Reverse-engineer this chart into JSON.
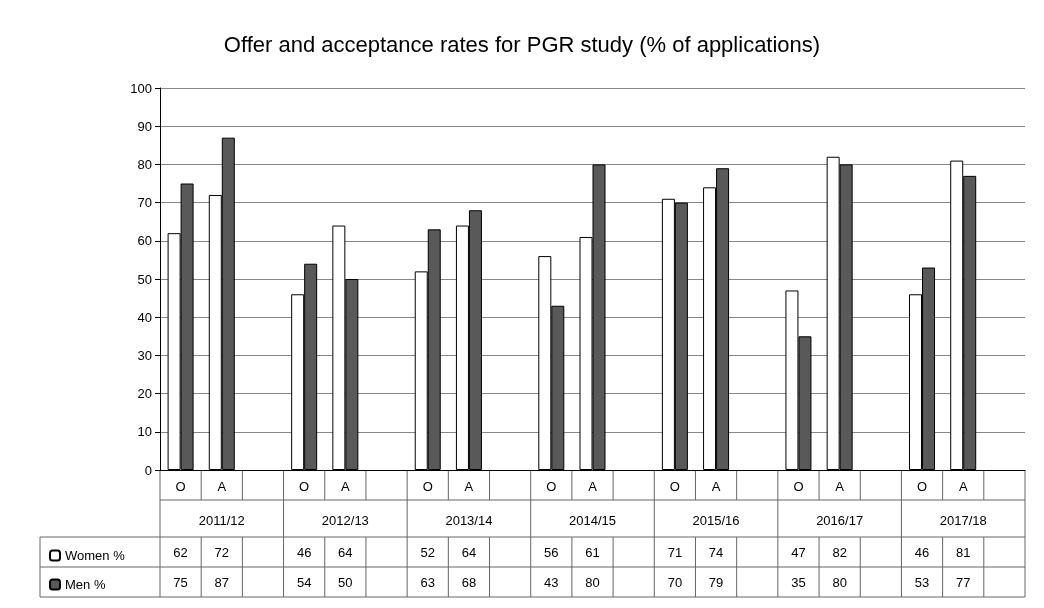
{
  "chart_data": {
    "type": "bar",
    "title": "Offer and acceptance rates for PGR study (% of applications)",
    "categories": [
      "O",
      "A",
      null,
      "O",
      "A",
      null,
      "O",
      "A",
      null,
      "O",
      "A",
      null,
      "O",
      "A",
      null,
      "O",
      "A",
      null,
      "O",
      "A",
      null
    ],
    "annotations": [
      "2011/12",
      "2012/13",
      "2013/14",
      "2014/15",
      "2015/16",
      "2016/17",
      "2017/18"
    ],
    "series": [
      {
        "name": "Women %",
        "color": "#ffffff",
        "values": [
          62,
          72,
          null,
          46,
          64,
          null,
          52,
          64,
          null,
          56,
          61,
          null,
          71,
          74,
          null,
          47,
          82,
          null,
          46,
          81,
          null
        ]
      },
      {
        "name": "Men %",
        "color": "#595959",
        "values": [
          75,
          87,
          null,
          54,
          50,
          null,
          63,
          68,
          null,
          43,
          80,
          null,
          70,
          79,
          null,
          35,
          80,
          null,
          53,
          77,
          null
        ]
      }
    ],
    "ylim": [
      0,
      100
    ],
    "yticks": [
      0,
      10,
      20,
      30,
      40,
      50,
      60,
      70,
      80,
      90,
      100
    ],
    "grid": "y",
    "legend": "bottom left",
    "data_labels": true
  }
}
